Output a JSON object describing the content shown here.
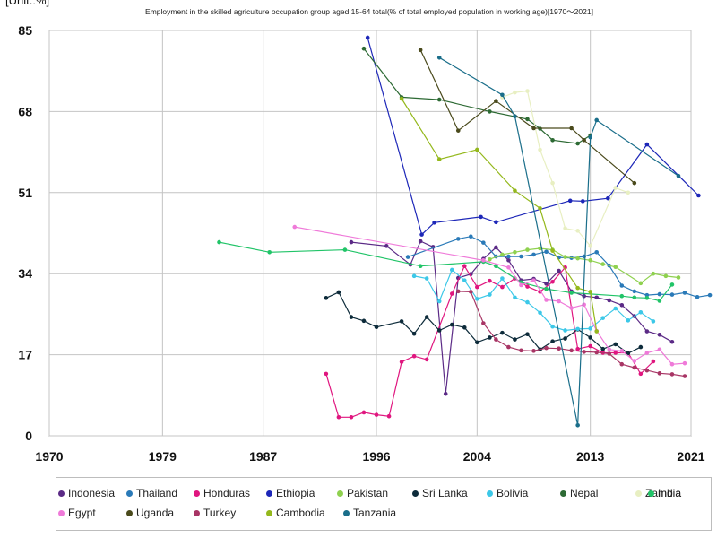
{
  "chart_data": {
    "type": "line",
    "title": "Employment in the skilled agriculture occupation group aged 15-64 total(% of total employed population in working age)[1970～2021]",
    "unit_label": "[Unit.:%]",
    "xlabel": "",
    "ylabel": "",
    "xlim": [
      1970,
      2021
    ],
    "ylim": [
      0,
      85
    ],
    "x_ticks": [
      1970,
      1979,
      1987,
      1996,
      2004,
      2013,
      2021
    ],
    "y_ticks": [
      0,
      17,
      34,
      51,
      68,
      85
    ],
    "grid": true,
    "legend_position": "bottom",
    "series": [
      {
        "name": "Indonesia",
        "color": "#5b2a86",
        "points": [
          [
            1994,
            40.6
          ],
          [
            1996.8,
            39.8
          ],
          [
            1998.7,
            35.9
          ],
          [
            1999.5,
            40.8
          ],
          [
            2000.5,
            39.6
          ],
          [
            2001.5,
            8.8
          ],
          [
            2002.5,
            33.1
          ],
          [
            2003.5,
            33.9
          ],
          [
            2004.5,
            37.1
          ],
          [
            2005.5,
            39.5
          ],
          [
            2006.5,
            36.8
          ],
          [
            2007.5,
            32.6
          ],
          [
            2008.5,
            32.9
          ],
          [
            2009.5,
            31.9
          ],
          [
            2010.5,
            34.6
          ],
          [
            2011.5,
            30.3
          ],
          [
            2012.5,
            29.3
          ],
          [
            2013.5,
            29.0
          ],
          [
            2014.5,
            28.4
          ],
          [
            2015.5,
            27.4
          ],
          [
            2016.5,
            25.1
          ],
          [
            2017.5,
            21.9
          ],
          [
            2018.5,
            21.2
          ],
          [
            2019.5,
            19.7
          ]
        ]
      },
      {
        "name": "Thailand",
        "color": "#2a7ab8",
        "points": [
          [
            1998.5,
            37.5
          ],
          [
            2002.5,
            41.3
          ],
          [
            2003.5,
            41.8
          ],
          [
            2004.5,
            40.5
          ],
          [
            2005.5,
            37.6
          ],
          [
            2006.5,
            37.6
          ],
          [
            2007.5,
            37.6
          ],
          [
            2008.5,
            38.0
          ],
          [
            2009.5,
            38.6
          ],
          [
            2010.5,
            37.4
          ],
          [
            2011.5,
            37.3
          ],
          [
            2012.5,
            37.6
          ],
          [
            2013.5,
            38.5
          ],
          [
            2014.5,
            35.7
          ],
          [
            2015.5,
            31.5
          ],
          [
            2016.5,
            30.3
          ],
          [
            2017.5,
            29.5
          ],
          [
            2018.5,
            29.7
          ],
          [
            2019.5,
            29.6
          ],
          [
            2020.5,
            30.0
          ],
          [
            2021.5,
            29.1
          ],
          [
            2022.5,
            29.5
          ]
        ]
      },
      {
        "name": "Honduras",
        "color": "#e0167f",
        "points": [
          [
            1992,
            13.0
          ],
          [
            1993,
            3.9
          ],
          [
            1994,
            3.9
          ],
          [
            1995,
            4.9
          ],
          [
            1996,
            4.4
          ],
          [
            1997,
            4.1
          ],
          [
            1998,
            15.5
          ],
          [
            1999,
            16.7
          ],
          [
            2000,
            16.0
          ],
          [
            2002,
            29.8
          ],
          [
            2003,
            35.6
          ],
          [
            2004,
            31.2
          ],
          [
            2005,
            32.5
          ],
          [
            2006,
            31.2
          ],
          [
            2007,
            33.0
          ],
          [
            2008,
            31.3
          ],
          [
            2009,
            30.2
          ],
          [
            2010,
            32.3
          ],
          [
            2011,
            35.3
          ],
          [
            2012,
            18.2
          ],
          [
            2013,
            18.8
          ],
          [
            2014,
            17.4
          ],
          [
            2015,
            17.4
          ],
          [
            2016,
            17.4
          ],
          [
            2017,
            13.0
          ],
          [
            2018,
            15.6
          ]
        ]
      },
      {
        "name": "Ethiopia",
        "color": "#1d27b8",
        "points": [
          [
            1995.3,
            83.5
          ],
          [
            1999.6,
            42.2
          ],
          [
            2000.6,
            44.7
          ],
          [
            2004.3,
            45.9
          ],
          [
            2005.5,
            44.8
          ],
          [
            2011.4,
            49.3
          ],
          [
            2012.4,
            49.2
          ],
          [
            2014.4,
            49.8
          ],
          [
            2017.5,
            61.1
          ],
          [
            2021.6,
            50.4
          ]
        ]
      },
      {
        "name": "Pakistan",
        "color": "#8fd14f",
        "points": [
          [
            2005,
            37.0
          ],
          [
            2006,
            38.0
          ],
          [
            2007,
            38.5
          ],
          [
            2008,
            39.0
          ],
          [
            2009,
            39.3
          ],
          [
            2010,
            39.0
          ],
          [
            2011,
            37.5
          ],
          [
            2012,
            37.2
          ],
          [
            2013,
            36.8
          ],
          [
            2014,
            36.0
          ],
          [
            2015,
            35.4
          ],
          [
            2017,
            32.0
          ],
          [
            2018,
            34.0
          ],
          [
            2019,
            33.5
          ],
          [
            2020,
            33.2
          ]
        ]
      },
      {
        "name": "Sri Lanka",
        "color": "#0d2b3a",
        "points": [
          [
            1992,
            28.9
          ],
          [
            1993,
            30.1
          ],
          [
            1994,
            24.9
          ],
          [
            1995,
            24.1
          ],
          [
            1996,
            22.8
          ],
          [
            1998,
            24.0
          ],
          [
            1999,
            21.4
          ],
          [
            2000,
            24.9
          ],
          [
            2001,
            22.1
          ],
          [
            2002,
            23.3
          ],
          [
            2003,
            22.7
          ],
          [
            2004,
            19.6
          ],
          [
            2005,
            20.6
          ],
          [
            2006,
            21.6
          ],
          [
            2007,
            20.2
          ],
          [
            2008,
            21.3
          ],
          [
            2009,
            18.1
          ],
          [
            2010,
            19.8
          ],
          [
            2011,
            20.4
          ],
          [
            2012,
            22.3
          ],
          [
            2013,
            20.6
          ],
          [
            2014,
            18.2
          ],
          [
            2015,
            19.2
          ],
          [
            2016,
            17.3
          ],
          [
            2017,
            18.6
          ]
        ]
      },
      {
        "name": "Bolivia",
        "color": "#3cc8e8",
        "points": [
          [
            1999,
            33.5
          ],
          [
            2000,
            33.0
          ],
          [
            2001,
            28.2
          ],
          [
            2002,
            34.8
          ],
          [
            2003,
            32.6
          ],
          [
            2004,
            28.7
          ],
          [
            2005,
            29.6
          ],
          [
            2006,
            33.0
          ],
          [
            2007,
            29.0
          ],
          [
            2008,
            28.0
          ],
          [
            2009,
            25.8
          ],
          [
            2010,
            22.9
          ],
          [
            2011,
            22.1
          ],
          [
            2012,
            22.4
          ],
          [
            2013,
            22.5
          ],
          [
            2014,
            24.7
          ],
          [
            2015,
            26.7
          ],
          [
            2016,
            24.2
          ],
          [
            2017,
            25.9
          ],
          [
            2018,
            24.0
          ]
        ]
      },
      {
        "name": "Nepal",
        "color": "#2d6a34",
        "points": [
          [
            1995,
            81.2
          ],
          [
            1998,
            71.0
          ],
          [
            2001,
            70.5
          ],
          [
            2005,
            68.0
          ],
          [
            2008,
            66.4
          ],
          [
            2009,
            64.4
          ],
          [
            2010,
            62.0
          ],
          [
            2012,
            61.3
          ],
          [
            2013,
            63.0
          ]
        ]
      },
      {
        "name": "Zambia",
        "color": "#e8efc2",
        "points": [
          [
            2006,
            71.0
          ],
          [
            2007,
            72.0
          ],
          [
            2008,
            72.3
          ],
          [
            2009,
            60.0
          ],
          [
            2010,
            53.0
          ],
          [
            2011,
            43.5
          ],
          [
            2012,
            43.0
          ],
          [
            2013,
            39.8
          ],
          [
            2015,
            52.0
          ],
          [
            2016,
            51.0
          ]
        ]
      },
      {
        "name": "India",
        "color": "#21c468",
        "points": [
          [
            1983.5,
            40.6
          ],
          [
            1987.5,
            38.5
          ],
          [
            1993.5,
            39.0
          ],
          [
            1999.5,
            35.6
          ],
          [
            2004.5,
            36.5
          ],
          [
            2005.5,
            35.6
          ],
          [
            2007.5,
            32.2
          ],
          [
            2009.5,
            30.8
          ],
          [
            2011.5,
            30.0
          ],
          [
            2015.5,
            29.3
          ],
          [
            2016.5,
            29.0
          ],
          [
            2017.5,
            28.9
          ],
          [
            2018.5,
            28.3
          ],
          [
            2019.5,
            31.7
          ]
        ]
      },
      {
        "name": "Egypt",
        "color": "#ef7ad9",
        "points": [
          [
            1989.5,
            43.8
          ],
          [
            2004.5,
            36.8
          ],
          [
            2006.5,
            35.3
          ],
          [
            2007.5,
            31.6
          ],
          [
            2008.5,
            32.6
          ],
          [
            2009.5,
            28.5
          ],
          [
            2010.5,
            28.2
          ],
          [
            2011.5,
            26.8
          ],
          [
            2012.5,
            27.5
          ],
          [
            2013.5,
            22.0
          ],
          [
            2014.5,
            18.1
          ],
          [
            2015.5,
            17.8
          ],
          [
            2016.5,
            15.7
          ],
          [
            2017.5,
            17.4
          ],
          [
            2018.5,
            18.1
          ],
          [
            2019.5,
            15.0
          ],
          [
            2020.5,
            15.2
          ]
        ]
      },
      {
        "name": "Uganda",
        "color": "#4a4a1c",
        "points": [
          [
            1999.5,
            80.9
          ],
          [
            2002.5,
            64.0
          ],
          [
            2005.5,
            70.2
          ],
          [
            2008.5,
            64.5
          ],
          [
            2011.5,
            64.5
          ],
          [
            2012.5,
            62.0
          ],
          [
            2016.5,
            53.0
          ]
        ]
      },
      {
        "name": "Turkey",
        "color": "#a83565",
        "points": [
          [
            2002.5,
            30.3
          ],
          [
            2003.5,
            30.2
          ],
          [
            2004.5,
            23.6
          ],
          [
            2005.5,
            20.2
          ],
          [
            2006.5,
            18.6
          ],
          [
            2007.5,
            17.9
          ],
          [
            2008.5,
            17.8
          ],
          [
            2009.5,
            18.4
          ],
          [
            2010.5,
            18.3
          ],
          [
            2011.5,
            17.9
          ],
          [
            2012.5,
            17.6
          ],
          [
            2013.5,
            17.5
          ],
          [
            2014.5,
            17.2
          ],
          [
            2015.5,
            15.0
          ],
          [
            2016.5,
            14.3
          ],
          [
            2017.5,
            13.7
          ],
          [
            2018.5,
            13.1
          ],
          [
            2019.5,
            12.9
          ],
          [
            2020.5,
            12.5
          ]
        ]
      },
      {
        "name": "Cambodia",
        "color": "#94b81c",
        "points": [
          [
            1998,
            70.7
          ],
          [
            2001,
            58.0
          ],
          [
            2004,
            60.0
          ],
          [
            2007,
            51.4
          ],
          [
            2009,
            47.7
          ],
          [
            2010,
            38.8
          ],
          [
            2012,
            31.0
          ],
          [
            2013,
            30.2
          ],
          [
            2013.5,
            21.9
          ]
        ]
      },
      {
        "name": "Tanzania",
        "color": "#1a6e8a",
        "points": [
          [
            2001,
            79.3
          ],
          [
            2006,
            71.5
          ],
          [
            2007,
            67.0
          ],
          [
            2012,
            2.2
          ],
          [
            2013,
            62.6
          ],
          [
            2013.5,
            66.2
          ],
          [
            2020,
            54.5
          ]
        ]
      }
    ]
  }
}
